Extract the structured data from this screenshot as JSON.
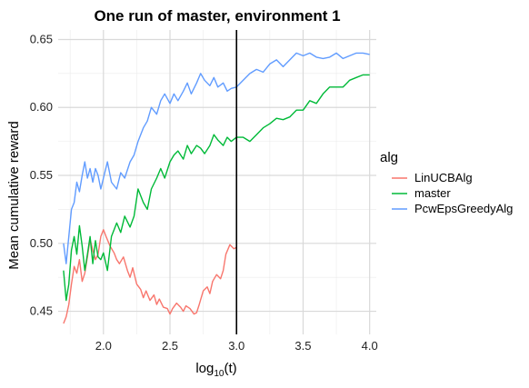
{
  "chart_data": {
    "type": "line",
    "title": "One run of master, environment 1",
    "xlabel_base": "log",
    "xlabel_sub": "10",
    "xlabel_arg": "(t)",
    "ylabel": "Mean cumulative reward",
    "xlim": [
      1.66,
      4.05
    ],
    "ylim": [
      0.433,
      0.657
    ],
    "xticks": [
      2.0,
      2.5,
      3.0,
      3.5,
      4.0
    ],
    "xtick_labels": [
      "2.0",
      "2.5",
      "3.0",
      "3.5",
      "4.0"
    ],
    "yticks": [
      0.45,
      0.5,
      0.55,
      0.6,
      0.65
    ],
    "ytick_labels": [
      "0.45",
      "0.50",
      "0.55",
      "0.60",
      "0.65"
    ],
    "grid": true,
    "vline_x": 3.0,
    "legend": {
      "title": "alg",
      "placement": "right"
    },
    "series": [
      {
        "name": "LinUCBAlg",
        "color": "#F8766D",
        "x": [
          1.7,
          1.72,
          1.74,
          1.76,
          1.78,
          1.8,
          1.82,
          1.84,
          1.86,
          1.88,
          1.9,
          1.92,
          1.94,
          1.96,
          1.98,
          2.0,
          2.02,
          2.05,
          2.08,
          2.1,
          2.12,
          2.15,
          2.18,
          2.2,
          2.22,
          2.25,
          2.28,
          2.3,
          2.32,
          2.35,
          2.38,
          2.4,
          2.42,
          2.45,
          2.48,
          2.5,
          2.52,
          2.55,
          2.58,
          2.6,
          2.62,
          2.65,
          2.68,
          2.7,
          2.72,
          2.75,
          2.78,
          2.8,
          2.82,
          2.85,
          2.88,
          2.9,
          2.92,
          2.95,
          2.98,
          3.0
        ],
        "y": [
          0.441,
          0.446,
          0.455,
          0.47,
          0.483,
          0.478,
          0.488,
          0.472,
          0.478,
          0.49,
          0.503,
          0.495,
          0.488,
          0.492,
          0.505,
          0.51,
          0.505,
          0.498,
          0.493,
          0.488,
          0.485,
          0.49,
          0.48,
          0.475,
          0.482,
          0.47,
          0.466,
          0.46,
          0.465,
          0.458,
          0.462,
          0.455,
          0.459,
          0.453,
          0.452,
          0.448,
          0.452,
          0.456,
          0.453,
          0.45,
          0.454,
          0.452,
          0.448,
          0.449,
          0.455,
          0.465,
          0.468,
          0.463,
          0.472,
          0.477,
          0.474,
          0.48,
          0.492,
          0.499,
          0.496,
          0.497
        ]
      },
      {
        "name": "master",
        "color": "#00BA38",
        "x": [
          1.7,
          1.72,
          1.74,
          1.76,
          1.78,
          1.8,
          1.82,
          1.84,
          1.86,
          1.88,
          1.9,
          1.92,
          1.94,
          1.96,
          1.98,
          2.0,
          2.03,
          2.06,
          2.1,
          2.13,
          2.16,
          2.2,
          2.23,
          2.26,
          2.3,
          2.33,
          2.36,
          2.4,
          2.43,
          2.46,
          2.5,
          2.53,
          2.56,
          2.6,
          2.63,
          2.66,
          2.7,
          2.73,
          2.76,
          2.8,
          2.83,
          2.86,
          2.9,
          2.93,
          2.96,
          3.0,
          3.05,
          3.1,
          3.15,
          3.2,
          3.25,
          3.3,
          3.35,
          3.4,
          3.45,
          3.5,
          3.55,
          3.6,
          3.65,
          3.7,
          3.75,
          3.8,
          3.85,
          3.9,
          3.95,
          4.0
        ],
        "y": [
          0.48,
          0.458,
          0.47,
          0.495,
          0.505,
          0.492,
          0.513,
          0.498,
          0.48,
          0.492,
          0.505,
          0.485,
          0.502,
          0.49,
          0.488,
          0.493,
          0.48,
          0.505,
          0.515,
          0.508,
          0.52,
          0.512,
          0.52,
          0.54,
          0.53,
          0.525,
          0.54,
          0.548,
          0.555,
          0.548,
          0.56,
          0.565,
          0.568,
          0.562,
          0.572,
          0.566,
          0.572,
          0.57,
          0.566,
          0.572,
          0.58,
          0.576,
          0.572,
          0.578,
          0.575,
          0.578,
          0.578,
          0.575,
          0.58,
          0.585,
          0.588,
          0.592,
          0.591,
          0.593,
          0.598,
          0.598,
          0.605,
          0.603,
          0.61,
          0.615,
          0.615,
          0.615,
          0.62,
          0.622,
          0.624,
          0.624
        ]
      },
      {
        "name": "PcwEpsGreedyAlg",
        "color": "#619CFF",
        "x": [
          1.7,
          1.72,
          1.74,
          1.76,
          1.78,
          1.8,
          1.82,
          1.84,
          1.86,
          1.88,
          1.9,
          1.92,
          1.94,
          1.96,
          1.98,
          2.0,
          2.03,
          2.06,
          2.1,
          2.13,
          2.16,
          2.2,
          2.23,
          2.26,
          2.3,
          2.33,
          2.36,
          2.4,
          2.43,
          2.46,
          2.5,
          2.53,
          2.56,
          2.6,
          2.63,
          2.66,
          2.7,
          2.73,
          2.76,
          2.8,
          2.83,
          2.86,
          2.9,
          2.93,
          2.96,
          3.0,
          3.05,
          3.1,
          3.15,
          3.2,
          3.25,
          3.3,
          3.35,
          3.4,
          3.45,
          3.5,
          3.55,
          3.6,
          3.65,
          3.7,
          3.75,
          3.8,
          3.85,
          3.9,
          3.95,
          4.0
        ],
        "y": [
          0.5,
          0.485,
          0.505,
          0.525,
          0.53,
          0.545,
          0.538,
          0.55,
          0.56,
          0.548,
          0.555,
          0.545,
          0.555,
          0.55,
          0.54,
          0.548,
          0.56,
          0.545,
          0.54,
          0.552,
          0.548,
          0.56,
          0.565,
          0.575,
          0.585,
          0.59,
          0.6,
          0.595,
          0.605,
          0.61,
          0.603,
          0.61,
          0.605,
          0.612,
          0.618,
          0.61,
          0.618,
          0.625,
          0.62,
          0.616,
          0.622,
          0.615,
          0.618,
          0.612,
          0.614,
          0.615,
          0.62,
          0.625,
          0.628,
          0.626,
          0.632,
          0.635,
          0.63,
          0.635,
          0.64,
          0.638,
          0.64,
          0.637,
          0.636,
          0.637,
          0.64,
          0.636,
          0.638,
          0.64,
          0.64,
          0.639
        ]
      }
    ]
  }
}
